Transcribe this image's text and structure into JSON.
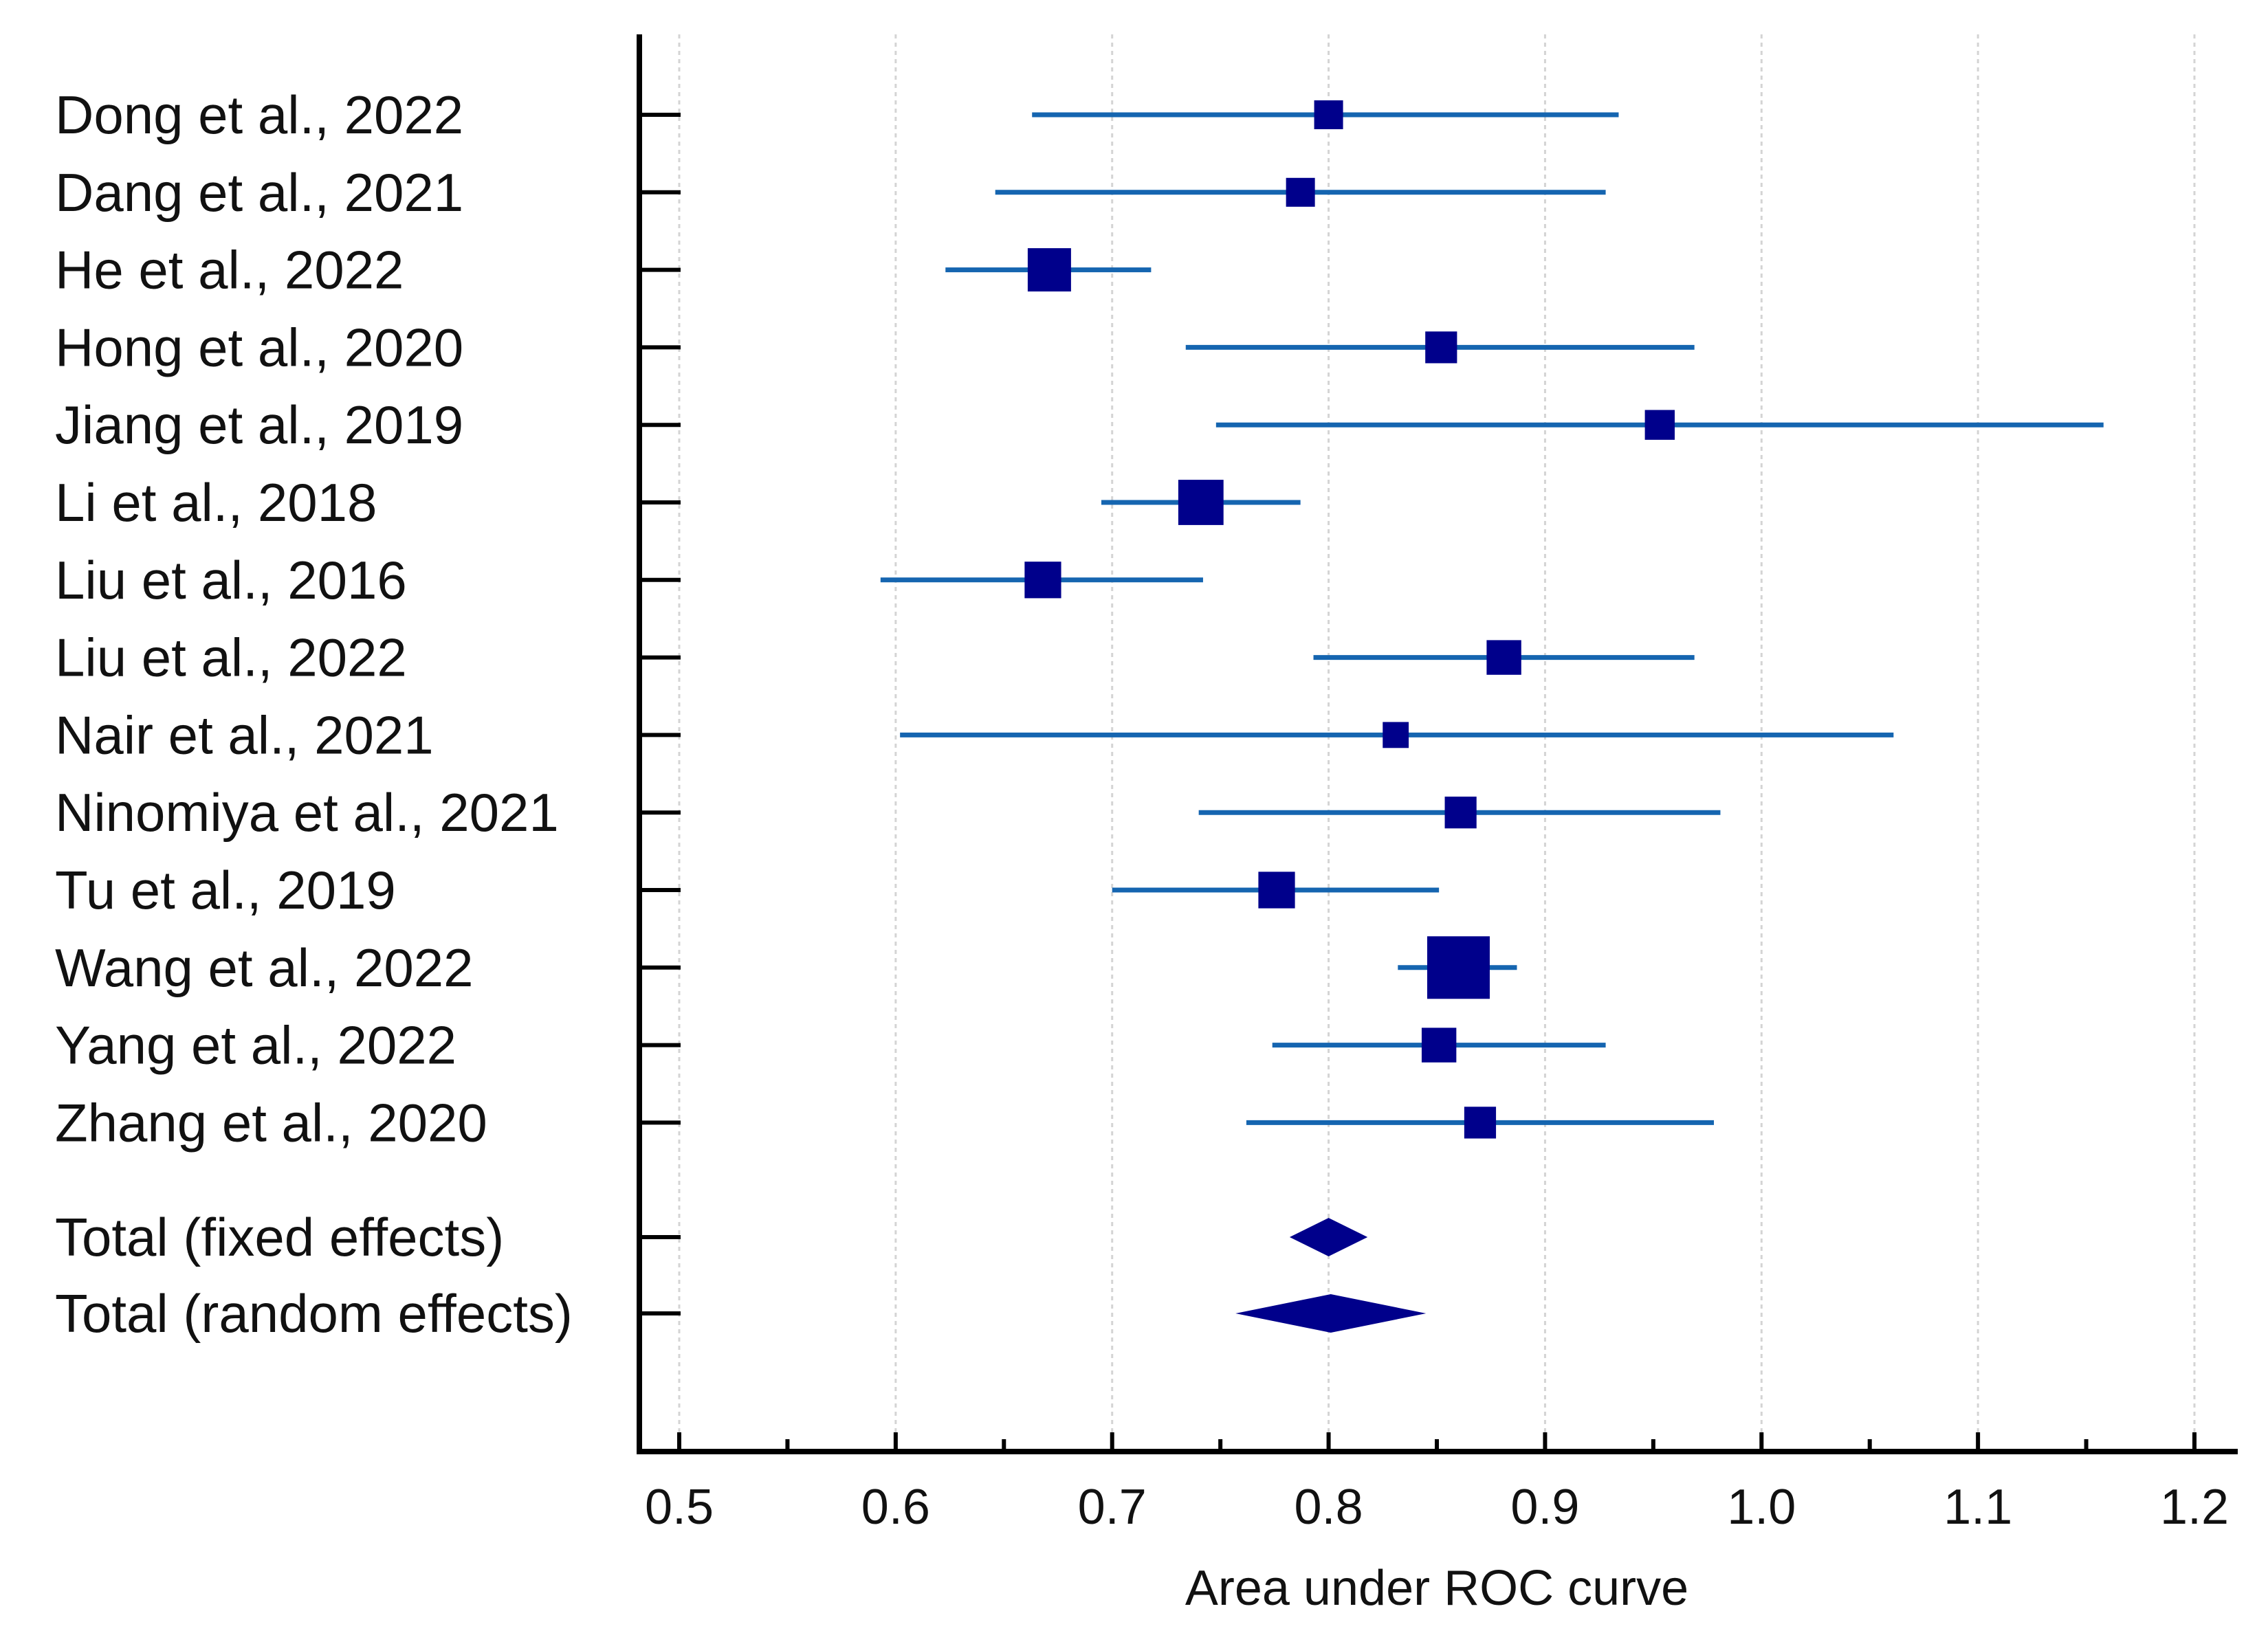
{
  "chart_data": {
    "type": "forest",
    "title": "",
    "xlabel": "Area under ROC curve",
    "ylabel": "",
    "xlim": [
      0.48,
      1.22
    ],
    "xticks": [
      "0.5",
      "0.6",
      "0.7",
      "0.8",
      "0.9",
      "1.0",
      "1.1",
      "1.2"
    ],
    "xtick_values": [
      0.5,
      0.6,
      0.7,
      0.8,
      0.9,
      1.0,
      1.1,
      1.2
    ],
    "grid": "vertical dashed",
    "colors": {
      "ci_line": "#1565b0",
      "marker": "#00008b"
    },
    "studies": [
      {
        "label": "Dong et al., 2022",
        "auc": 0.8,
        "lower": 0.663,
        "upper": 0.934,
        "weight": 1.0
      },
      {
        "label": "Dang et al., 2021",
        "auc": 0.787,
        "lower": 0.646,
        "upper": 0.928,
        "weight": 1.0
      },
      {
        "label": "He et al., 2022",
        "auc": 0.671,
        "lower": 0.623,
        "upper": 0.718,
        "weight": 2.5
      },
      {
        "label": "Hong et al., 2020",
        "auc": 0.852,
        "lower": 0.734,
        "upper": 0.969,
        "weight": 1.3
      },
      {
        "label": "Jiang et al., 2019",
        "auc": 0.953,
        "lower": 0.748,
        "upper": 1.158,
        "weight": 1.1
      },
      {
        "label": "Li et al., 2018",
        "auc": 0.741,
        "lower": 0.695,
        "upper": 0.787,
        "weight": 2.7
      },
      {
        "label": "Liu et al., 2016",
        "auc": 0.668,
        "lower": 0.593,
        "upper": 0.742,
        "weight": 1.8
      },
      {
        "label": "Liu et al., 2022",
        "auc": 0.881,
        "lower": 0.793,
        "upper": 0.969,
        "weight": 1.6
      },
      {
        "label": "Nair et al., 2021",
        "auc": 0.831,
        "lower": 0.602,
        "upper": 1.061,
        "weight": 0.7
      },
      {
        "label": "Ninomiya et al., 2021",
        "auc": 0.861,
        "lower": 0.74,
        "upper": 0.981,
        "weight": 1.3
      },
      {
        "label": "Tu et al., 2019",
        "auc": 0.776,
        "lower": 0.7,
        "upper": 0.851,
        "weight": 1.8
      },
      {
        "label": "Wang et al., 2022",
        "auc": 0.86,
        "lower": 0.832,
        "upper": 0.887,
        "weight": 4.5
      },
      {
        "label": "Yang et al., 2022",
        "auc": 0.851,
        "lower": 0.774,
        "upper": 0.928,
        "weight": 1.6
      },
      {
        "label": "Zhang et al., 2020",
        "auc": 0.87,
        "lower": 0.762,
        "upper": 0.978,
        "weight": 1.3
      }
    ],
    "totals": [
      {
        "label": "Total (fixed effects)",
        "auc": 0.8,
        "lower": 0.782,
        "upper": 0.818
      },
      {
        "label": "Total (random effects)",
        "auc": 0.801,
        "lower": 0.757,
        "upper": 0.845
      }
    ]
  }
}
